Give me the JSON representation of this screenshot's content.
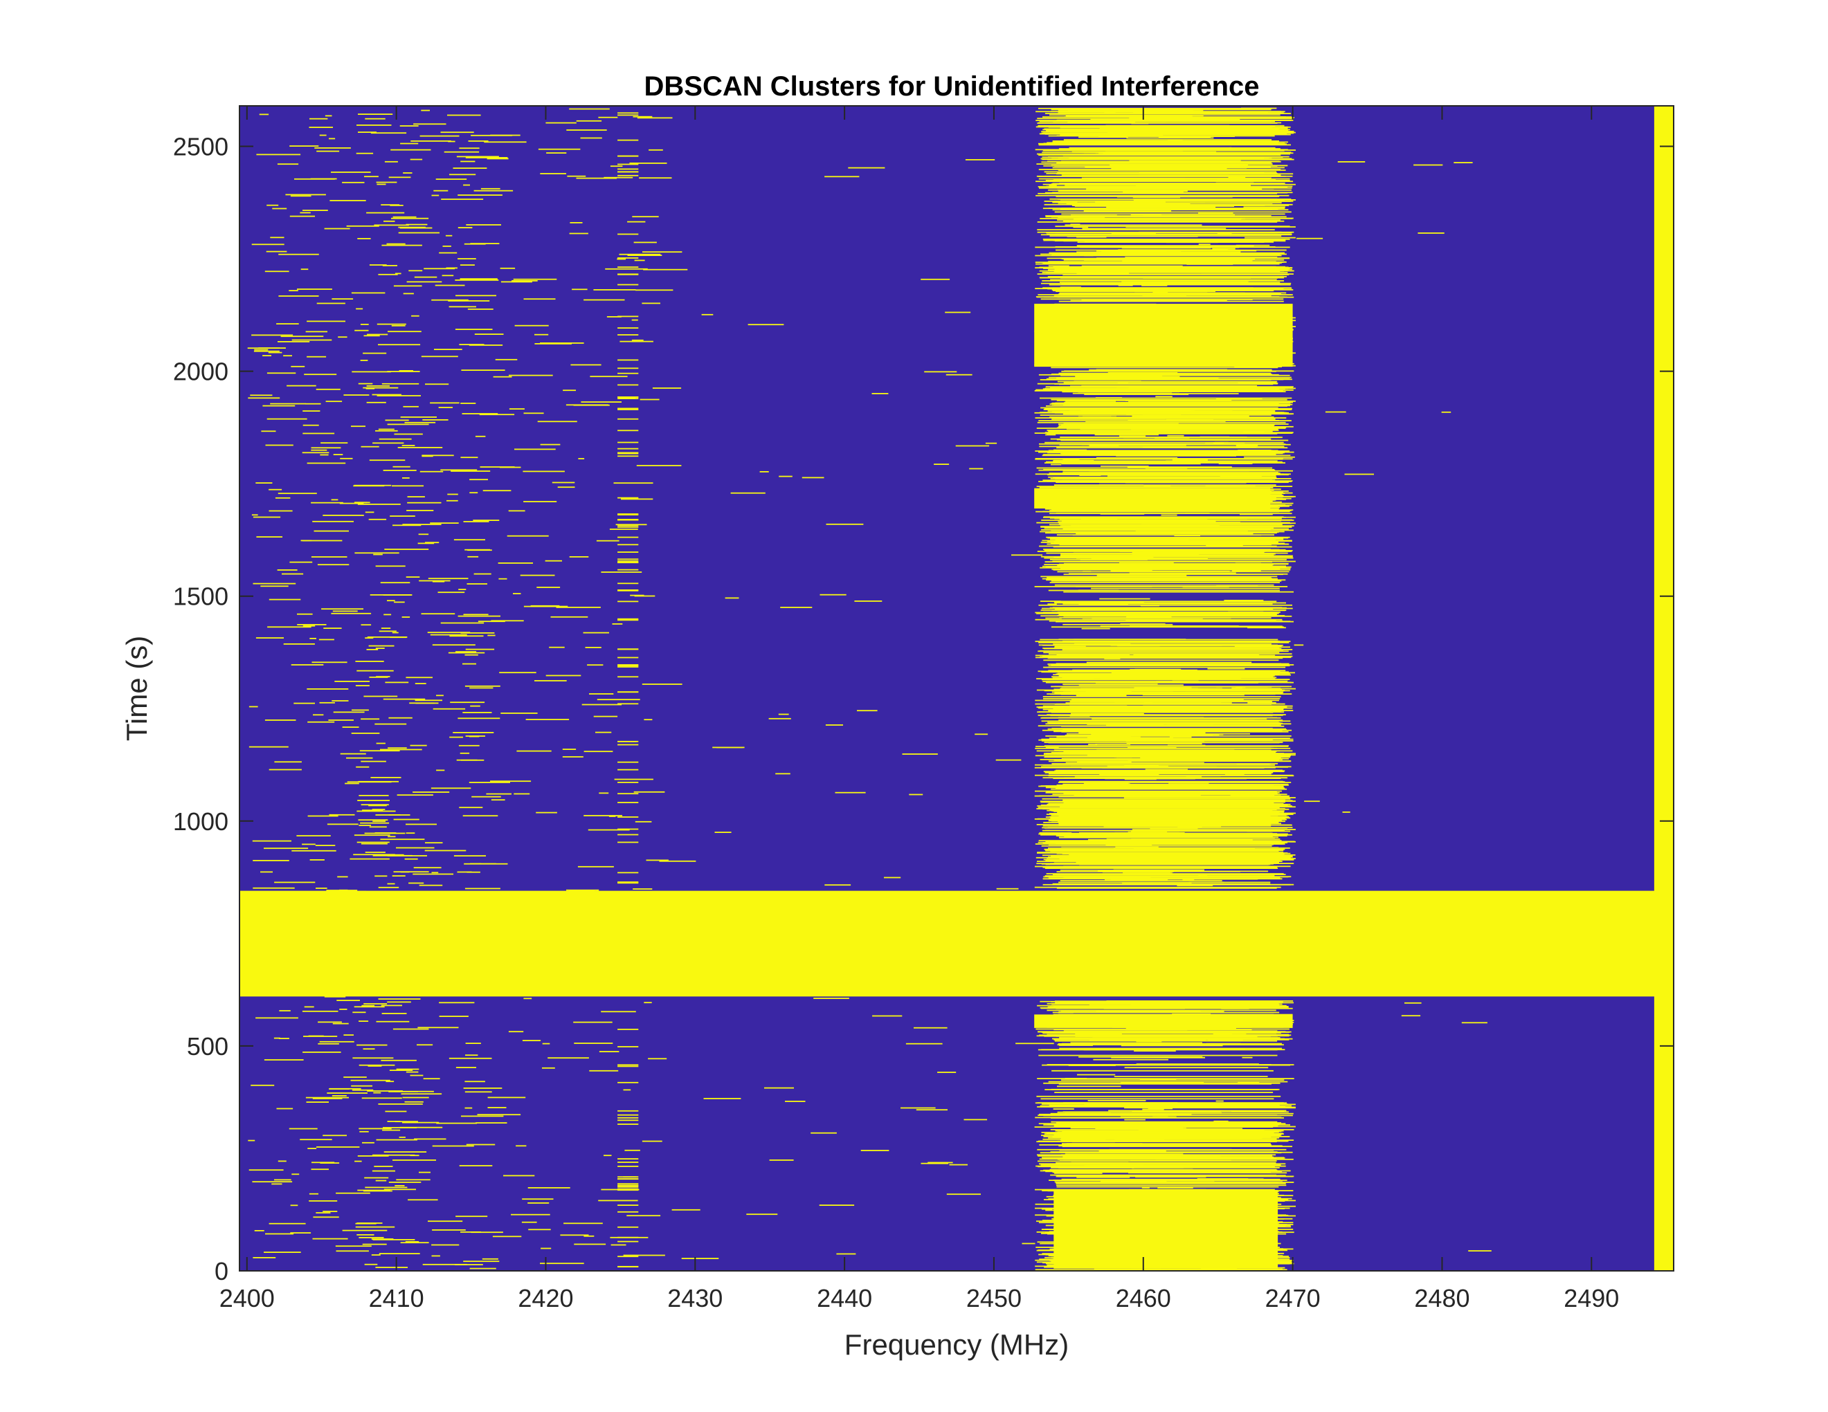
{
  "chart_data": {
    "type": "heatmap",
    "title": "DBSCAN Clusters for Unidentified Interference",
    "xlabel": "Frequency (MHz)",
    "ylabel": "Time (s)",
    "xlim": [
      2399.5,
      2495.5
    ],
    "ylim": [
      0,
      2590
    ],
    "xticks": [
      2400,
      2410,
      2420,
      2430,
      2440,
      2450,
      2460,
      2470,
      2480,
      2490
    ],
    "yticks": [
      0,
      500,
      1000,
      1500,
      2000,
      2500
    ],
    "grid": false,
    "colors": {
      "background_class": "#3A26A4",
      "cluster_class": "#F9F90F",
      "axis": "#262626"
    },
    "regions": [
      {
        "name": "wideband interference band",
        "x": [
          2399.5,
          2495.5
        ],
        "y": [
          610,
          845
        ]
      },
      {
        "name": "continuous carrier at band edge",
        "x": [
          2494.2,
          2495.5
        ],
        "y": [
          0,
          2590
        ]
      },
      {
        "name": "dense block 0-200 s",
        "x": [
          2454,
          2469
        ],
        "y": [
          5,
          180
        ]
      },
      {
        "name": "dense block 2010-2150 s",
        "x": [
          2452.7,
          2470
        ],
        "y": [
          2010,
          2150
        ]
      },
      {
        "name": "dense block 1700-1740 s",
        "x": [
          2452.7,
          2468.5
        ],
        "y": [
          1695,
          1740
        ]
      },
      {
        "name": "dense block 540-570 s",
        "x": [
          2452.7,
          2470
        ],
        "y": [
          540,
          570
        ]
      }
    ]
  }
}
